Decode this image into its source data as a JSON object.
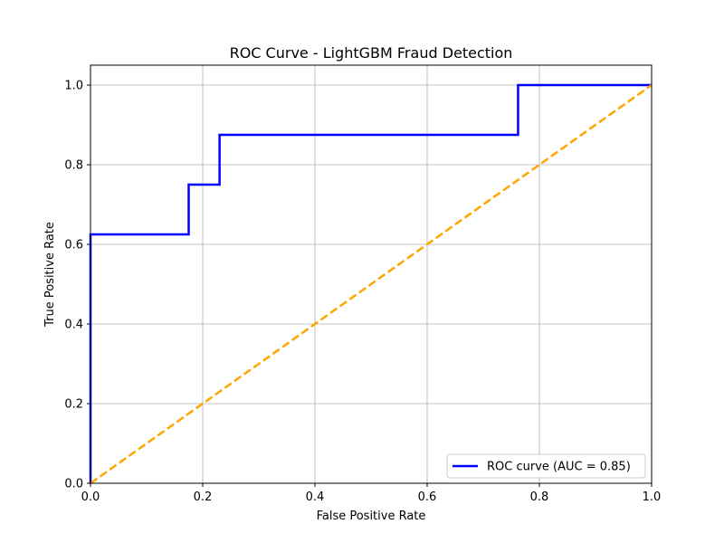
{
  "chart_data": {
    "type": "line",
    "title": "ROC Curve - LightGBM Fraud Detection",
    "xlabel": "False Positive Rate",
    "ylabel": "True Positive Rate",
    "xlim": [
      0.0,
      1.0
    ],
    "ylim": [
      0.0,
      1.05
    ],
    "x_ticks": [
      0.0,
      0.2,
      0.4,
      0.6,
      0.8,
      1.0
    ],
    "y_ticks": [
      0.0,
      0.2,
      0.4,
      0.6,
      0.8,
      1.0
    ],
    "x_tick_labels": [
      "0.0",
      "0.2",
      "0.4",
      "0.6",
      "0.8",
      "1.0"
    ],
    "y_tick_labels": [
      "0.0",
      "0.2",
      "0.4",
      "0.6",
      "0.8",
      "1.0"
    ],
    "grid": true,
    "legend_position": "lower-right",
    "series": [
      {
        "name": "ROC curve (AUC = 0.85)",
        "color": "#0000ff",
        "style": "solid",
        "x": [
          0.0,
          0.0,
          0.175,
          0.175,
          0.23,
          0.23,
          0.762,
          0.762,
          1.0
        ],
        "y": [
          0.0,
          0.625,
          0.625,
          0.75,
          0.75,
          0.875,
          0.875,
          1.0,
          1.0
        ]
      },
      {
        "color": "#ffa500",
        "style": "dashed",
        "x": [
          0.0,
          1.0
        ],
        "y": [
          0.0,
          1.0
        ]
      }
    ]
  }
}
